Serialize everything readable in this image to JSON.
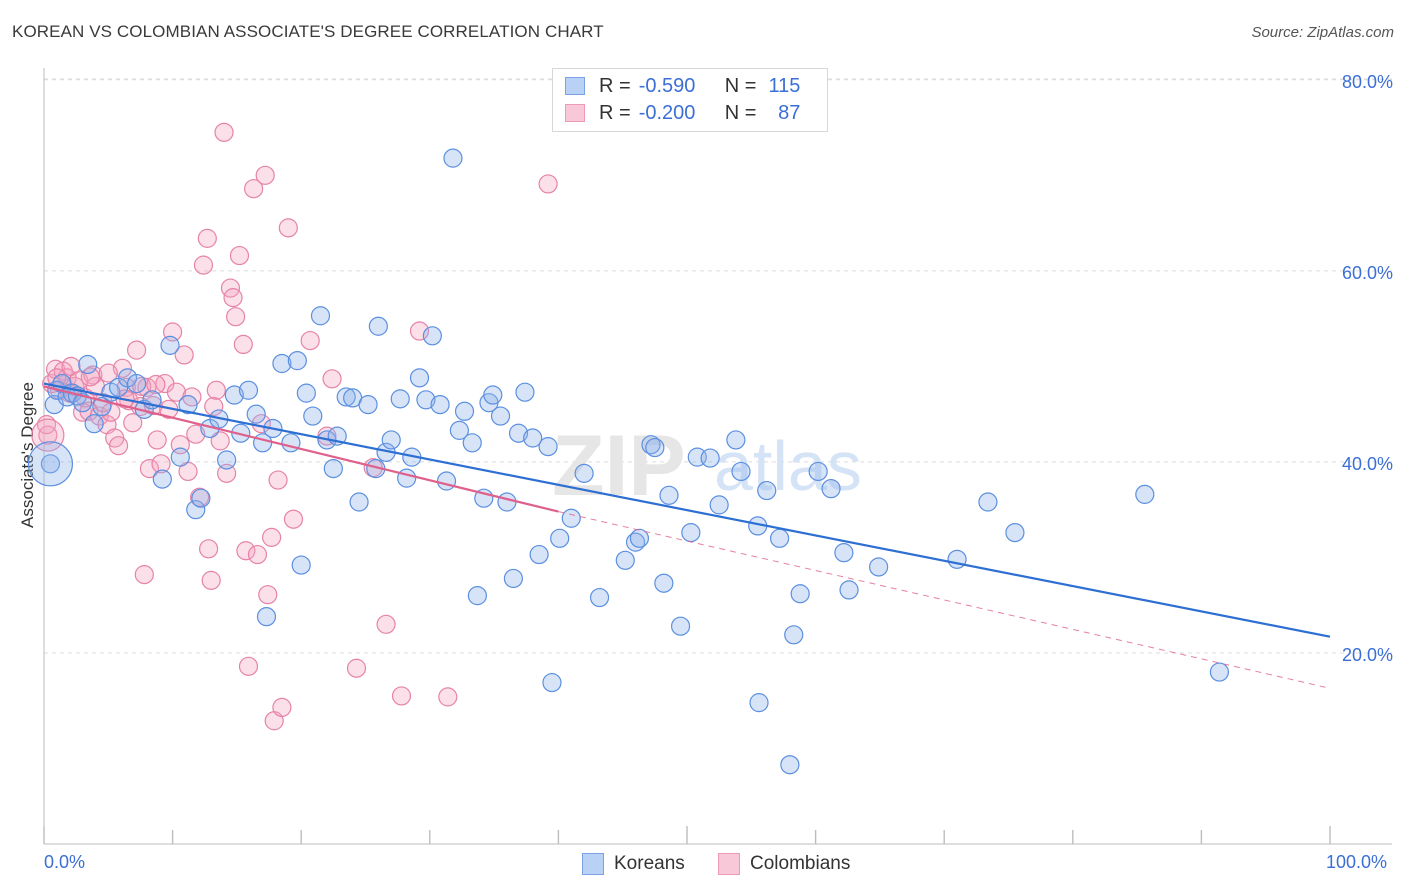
{
  "header": {
    "title": "KOREAN VS COLOMBIAN ASSOCIATE'S DEGREE CORRELATION CHART",
    "source": "Source: ZipAtlas.com"
  },
  "legend": {
    "r_label": "R =",
    "n_label": "N =",
    "rows": [
      {
        "r": "-0.590",
        "n": "115"
      },
      {
        "r": "-0.200",
        "n": "87"
      }
    ]
  },
  "bottom_legend": [
    "Koreans",
    "Colombians"
  ],
  "watermark": {
    "zip": "ZIP",
    "atlas": "atlas"
  },
  "x_axis": {
    "min_label": "0.0%",
    "max_label": "100.0%"
  },
  "chart_data": {
    "type": "scatter",
    "title": "KOREAN VS COLOMBIAN ASSOCIATE'S DEGREE CORRELATION CHART",
    "xlabel": "",
    "ylabel": "Associate's Degree",
    "xlim": [
      0,
      100
    ],
    "ylim": [
      0,
      80
    ],
    "y_ticks": [
      20,
      40,
      60,
      80
    ],
    "y_tick_labels": [
      "20.0%",
      "40.0%",
      "60.0%",
      "80.0%"
    ],
    "grid": true,
    "legend_placement": "top-center",
    "colors": {
      "Koreans": "#5b8fe0",
      "Colombians": "#ec8fb0",
      "blue_line": "#2d6fd2",
      "pink_line": "#e0608c"
    },
    "series": [
      {
        "name": "Koreans",
        "r": -0.59,
        "n": 115,
        "trend": {
          "x0": 0,
          "y0": 48.2,
          "x1": 100,
          "y1": 21.7
        },
        "points": [
          [
            0.5,
            39.8
          ],
          [
            0.8,
            46
          ],
          [
            1,
            47.5
          ],
          [
            1.4,
            48.2
          ],
          [
            1.8,
            46.8
          ],
          [
            2.2,
            47.2
          ],
          [
            2.6,
            46.9
          ],
          [
            3,
            46.2
          ],
          [
            3.4,
            50.2
          ],
          [
            3.9,
            44
          ],
          [
            4.5,
            45.8
          ],
          [
            5.2,
            47.3
          ],
          [
            5.8,
            47.8
          ],
          [
            6.5,
            48.8
          ],
          [
            7.2,
            48.2
          ],
          [
            7.8,
            45.5
          ],
          [
            8.4,
            46.5
          ],
          [
            9.2,
            38.2
          ],
          [
            9.8,
            52.2
          ],
          [
            10.6,
            40.5
          ],
          [
            11.2,
            46
          ],
          [
            11.8,
            35
          ],
          [
            12.2,
            36.2
          ],
          [
            12.9,
            43.5
          ],
          [
            13.6,
            44.5
          ],
          [
            14.2,
            40.2
          ],
          [
            14.8,
            47
          ],
          [
            15.3,
            43
          ],
          [
            15.9,
            47.5
          ],
          [
            16.5,
            45
          ],
          [
            17,
            42
          ],
          [
            17.3,
            23.8
          ],
          [
            17.8,
            43.5
          ],
          [
            18.5,
            50.3
          ],
          [
            19.2,
            42
          ],
          [
            19.7,
            50.6
          ],
          [
            20,
            29.2
          ],
          [
            20.4,
            47.2
          ],
          [
            20.9,
            44.8
          ],
          [
            21.5,
            55.3
          ],
          [
            22,
            42.3
          ],
          [
            22.5,
            39.3
          ],
          [
            22.8,
            42.7
          ],
          [
            23.5,
            46.8
          ],
          [
            24,
            46.7
          ],
          [
            24.5,
            35.8
          ],
          [
            25.2,
            46
          ],
          [
            25.8,
            39.3
          ],
          [
            26,
            54.2
          ],
          [
            26.6,
            41
          ],
          [
            27,
            42.3
          ],
          [
            27.7,
            46.6
          ],
          [
            28.2,
            38.3
          ],
          [
            28.6,
            40.5
          ],
          [
            29.2,
            48.8
          ],
          [
            29.7,
            46.5
          ],
          [
            30.2,
            53.2
          ],
          [
            30.8,
            46
          ],
          [
            31.3,
            38
          ],
          [
            31.8,
            71.8
          ],
          [
            32.3,
            43.3
          ],
          [
            32.7,
            45.3
          ],
          [
            33.3,
            42
          ],
          [
            33.7,
            26
          ],
          [
            34.2,
            36.2
          ],
          [
            34.6,
            46.2
          ],
          [
            34.9,
            47
          ],
          [
            35.5,
            44.8
          ],
          [
            36,
            35.8
          ],
          [
            36.5,
            27.8
          ],
          [
            36.9,
            43
          ],
          [
            37.4,
            47.3
          ],
          [
            38,
            42.5
          ],
          [
            38.5,
            30.3
          ],
          [
            39.2,
            41.6
          ],
          [
            39.5,
            16.9
          ],
          [
            40.1,
            32
          ],
          [
            41,
            34.1
          ],
          [
            42,
            38.8
          ],
          [
            43.2,
            25.8
          ],
          [
            45.2,
            29.7
          ],
          [
            46,
            31.6
          ],
          [
            46.3,
            32
          ],
          [
            47.2,
            41.8
          ],
          [
            47.5,
            41.5
          ],
          [
            48.2,
            27.3
          ],
          [
            48.6,
            36.5
          ],
          [
            49.5,
            22.8
          ],
          [
            50.3,
            32.6
          ],
          [
            50.8,
            40.5
          ],
          [
            51.8,
            40.4
          ],
          [
            52.5,
            35.5
          ],
          [
            53.8,
            42.3
          ],
          [
            54.2,
            39
          ],
          [
            55.5,
            33.3
          ],
          [
            55.6,
            14.8
          ],
          [
            56.2,
            37
          ],
          [
            57.2,
            32
          ],
          [
            58,
            8.3
          ],
          [
            58.3,
            21.9
          ],
          [
            58.8,
            26.2
          ],
          [
            60.2,
            39
          ],
          [
            61.2,
            37.2
          ],
          [
            62.2,
            30.5
          ],
          [
            62.6,
            26.6
          ],
          [
            64.9,
            29
          ],
          [
            71,
            29.8
          ],
          [
            73.4,
            35.8
          ],
          [
            75.5,
            32.6
          ],
          [
            85.6,
            36.6
          ],
          [
            91.4,
            18
          ]
        ]
      },
      {
        "name": "Colombians",
        "r": -0.2,
        "n": 87,
        "trend": {
          "x0": 0,
          "y0": 47.9,
          "x1": 40,
          "y1": 34.8,
          "dashed_x1": 100,
          "dashed_y1": 16.3
        },
        "points": [
          [
            0.3,
            42.8
          ],
          [
            0.6,
            48.2
          ],
          [
            0.9,
            49.7
          ],
          [
            1.2,
            47.5
          ],
          [
            1.5,
            49.5
          ],
          [
            1.8,
            48.8
          ],
          [
            2.1,
            50
          ],
          [
            2.4,
            47.9
          ],
          [
            2.7,
            48.5
          ],
          [
            3,
            45.2
          ],
          [
            3.2,
            46.7
          ],
          [
            3.5,
            45.3
          ],
          [
            3.8,
            49.1
          ],
          [
            4,
            47.9
          ],
          [
            4.3,
            44.8
          ],
          [
            4.6,
            46.2
          ],
          [
            4.9,
            43.9
          ],
          [
            5.2,
            45.2
          ],
          [
            5.5,
            42.5
          ],
          [
            5.8,
            41.7
          ],
          [
            6.1,
            49.8
          ],
          [
            6.4,
            47.8
          ],
          [
            6.6,
            46.4
          ],
          [
            6.9,
            44.1
          ],
          [
            7.2,
            51.7
          ],
          [
            7.5,
            45.8
          ],
          [
            7.8,
            28.2
          ],
          [
            8,
            47.8
          ],
          [
            8.2,
            39.3
          ],
          [
            8.5,
            45.9
          ],
          [
            8.8,
            42.3
          ],
          [
            9.1,
            39.8
          ],
          [
            9.4,
            48.2
          ],
          [
            9.7,
            45.5
          ],
          [
            10,
            53.6
          ],
          [
            10.3,
            47.3
          ],
          [
            10.6,
            41.8
          ],
          [
            10.9,
            51.2
          ],
          [
            11.2,
            39
          ],
          [
            11.5,
            46.8
          ],
          [
            11.8,
            42.9
          ],
          [
            12.1,
            36.3
          ],
          [
            12.4,
            60.6
          ],
          [
            12.7,
            63.4
          ],
          [
            12.8,
            30.9
          ],
          [
            13,
            27.6
          ],
          [
            13.2,
            45.8
          ],
          [
            13.4,
            47.5
          ],
          [
            13.7,
            42.2
          ],
          [
            14,
            74.5
          ],
          [
            14.2,
            38.8
          ],
          [
            14.5,
            58.2
          ],
          [
            14.7,
            57.2
          ],
          [
            14.9,
            55.2
          ],
          [
            15.2,
            61.6
          ],
          [
            15.5,
            52.3
          ],
          [
            15.7,
            30.7
          ],
          [
            15.9,
            18.6
          ],
          [
            16.3,
            68.6
          ],
          [
            16.6,
            30.3
          ],
          [
            16.9,
            44
          ],
          [
            17.2,
            70
          ],
          [
            17.4,
            26.1
          ],
          [
            17.7,
            32.1
          ],
          [
            17.9,
            12.9
          ],
          [
            18.2,
            38.1
          ],
          [
            18.5,
            14.3
          ],
          [
            19,
            64.5
          ],
          [
            19.4,
            34
          ],
          [
            20.7,
            52.7
          ],
          [
            22,
            42.7
          ],
          [
            22.4,
            48.7
          ],
          [
            24.3,
            18.4
          ],
          [
            25.6,
            39.4
          ],
          [
            26.6,
            23
          ],
          [
            27.8,
            15.5
          ],
          [
            29.2,
            53.7
          ],
          [
            31.4,
            15.4
          ],
          [
            39.2,
            69.1
          ],
          [
            0.2,
            43.9
          ],
          [
            1,
            48.8
          ],
          [
            2,
            47.2
          ],
          [
            3.6,
            48.9
          ],
          [
            5,
            49.3
          ],
          [
            6.3,
            46.6
          ],
          [
            7.6,
            47.9
          ],
          [
            8.7,
            48.1
          ]
        ]
      }
    ]
  }
}
